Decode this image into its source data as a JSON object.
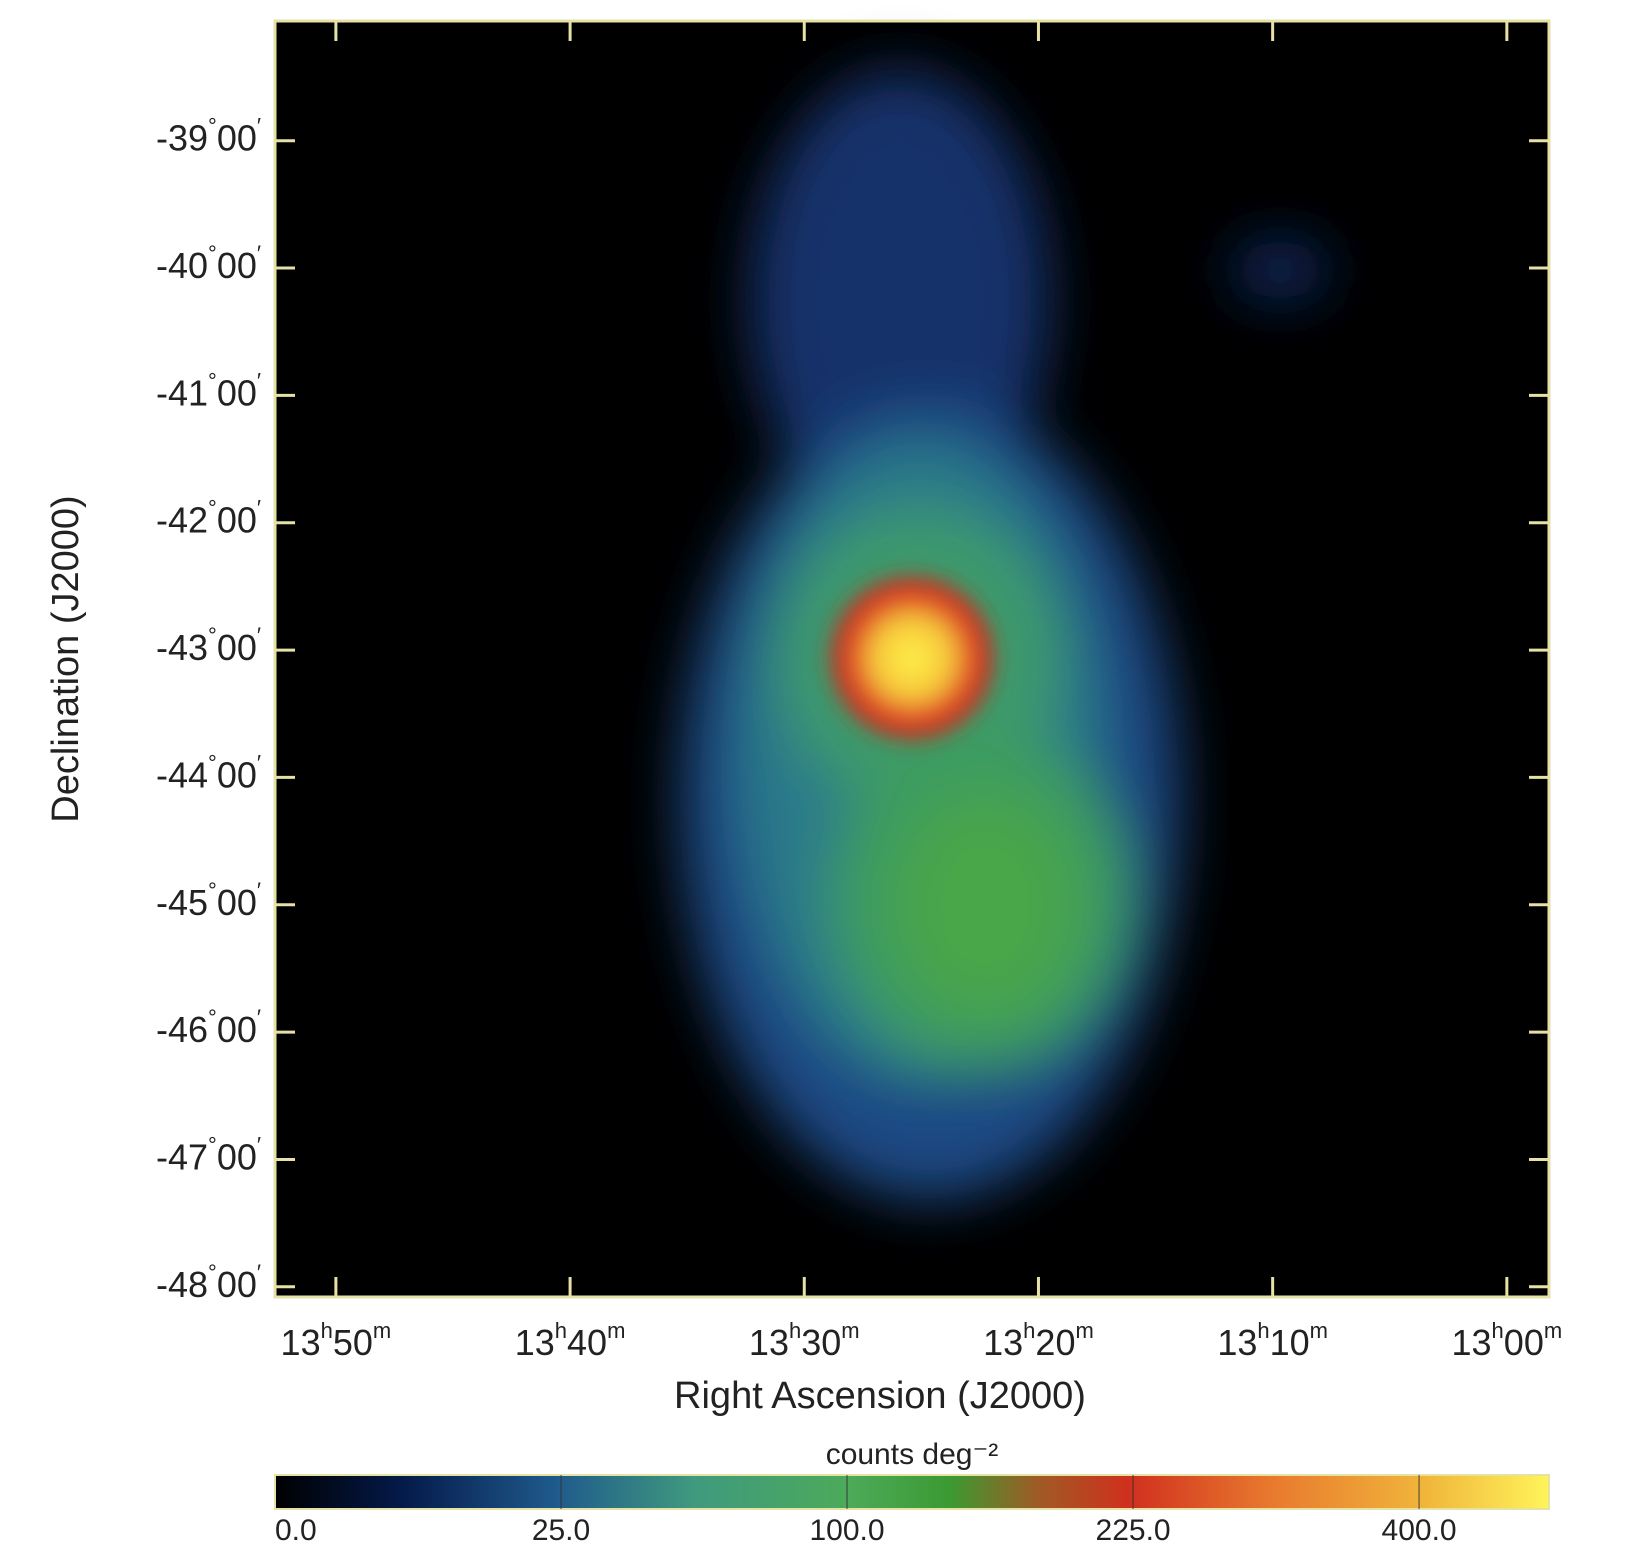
{
  "chart_data": {
    "type": "image",
    "xlabel": "Right Ascension (J2000)",
    "ylabel": "Declination (J2000)",
    "xlim": [
      832.6,
      778.2
    ],
    "xticks": [
      {
        "value": 830,
        "label": "13h50m"
      },
      {
        "value": 820,
        "label": "13h40m"
      },
      {
        "value": 810,
        "label": "13h30m"
      },
      {
        "value": 800,
        "label": "13h20m"
      },
      {
        "value": 790,
        "label": "13h10m"
      },
      {
        "value": 780,
        "label": "13h00m"
      }
    ],
    "ylim": [
      -48.08,
      -38.06
    ],
    "yticks": [
      {
        "value": -39,
        "label": "-39°00′"
      },
      {
        "value": -40,
        "label": "-40°00′"
      },
      {
        "value": -41,
        "label": "-41°00′"
      },
      {
        "value": -42,
        "label": "-42°00′"
      },
      {
        "value": -43,
        "label": "-43°00′"
      },
      {
        "value": -44,
        "label": "-44°00′"
      },
      {
        "value": -45,
        "label": "-45°00′"
      },
      {
        "value": -46,
        "label": "-46°00′"
      },
      {
        "value": -47,
        "label": "-47°00′"
      },
      {
        "value": -48,
        "label": "-48°00′"
      }
    ],
    "colorbar": {
      "label": "counts deg⁻²",
      "scale": "sqrt",
      "clim": [
        0,
        496
      ],
      "ticks": [
        {
          "value": 0,
          "label": "0.0"
        },
        {
          "value": 25,
          "label": "25.0"
        },
        {
          "value": 100,
          "label": "100.0"
        },
        {
          "value": 225,
          "label": "225.0"
        },
        {
          "value": 400,
          "label": "400.0"
        }
      ]
    }
  }
}
